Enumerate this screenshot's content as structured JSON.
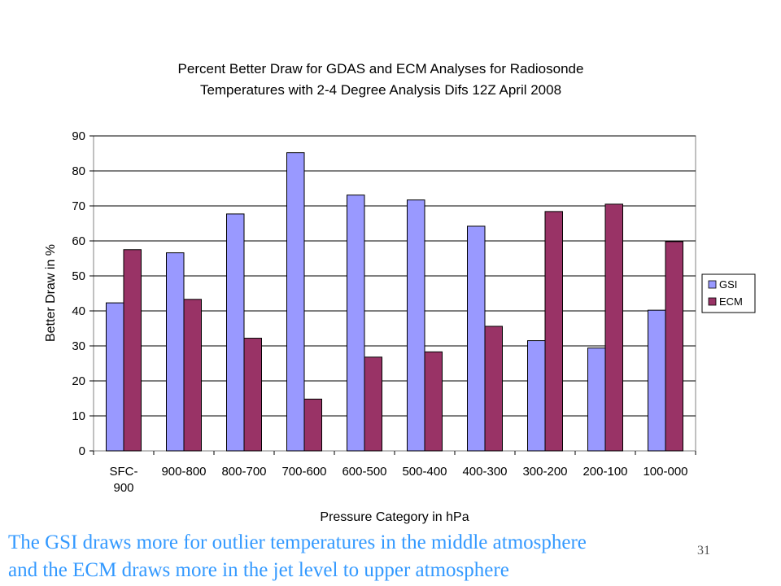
{
  "chart_data": {
    "type": "bar",
    "title": [
      "Percent Better Draw for GDAS and ECM Analyses for Radiosonde",
      "Temperatures with 2-4 Degree Analysis Difs 12Z April 2008"
    ],
    "xlabel": "Pressure Category in hPa",
    "ylabel": "Better Draw in %",
    "ylim": [
      0,
      90
    ],
    "yticks": [
      0,
      10,
      20,
      30,
      40,
      50,
      60,
      70,
      80,
      90
    ],
    "grid": true,
    "legend_position": "right",
    "categories": [
      [
        "SFC-",
        "900"
      ],
      [
        "900-800"
      ],
      [
        "800-700"
      ],
      [
        "700-600"
      ],
      [
        "600-500"
      ],
      [
        "500-400"
      ],
      [
        "400-300"
      ],
      [
        "300-200"
      ],
      [
        "200-100"
      ],
      [
        "100-000"
      ]
    ],
    "series": [
      {
        "name": "GSI",
        "color": "#9999ff",
        "values": [
          42.3,
          56.6,
          67.7,
          85.2,
          73.1,
          71.7,
          64.2,
          31.5,
          29.4,
          40.2
        ]
      },
      {
        "name": "ECM",
        "color": "#993366",
        "values": [
          57.5,
          43.3,
          32.2,
          14.8,
          26.8,
          28.3,
          35.6,
          68.4,
          70.5,
          59.8
        ]
      }
    ]
  },
  "caption": {
    "line1": "The GSI draws more for outlier temperatures in the middle atmosphere",
    "line2": "and the ECM draws more in the jet level  to upper atmosphere",
    "color": "#3399ff"
  },
  "page_number": "31"
}
